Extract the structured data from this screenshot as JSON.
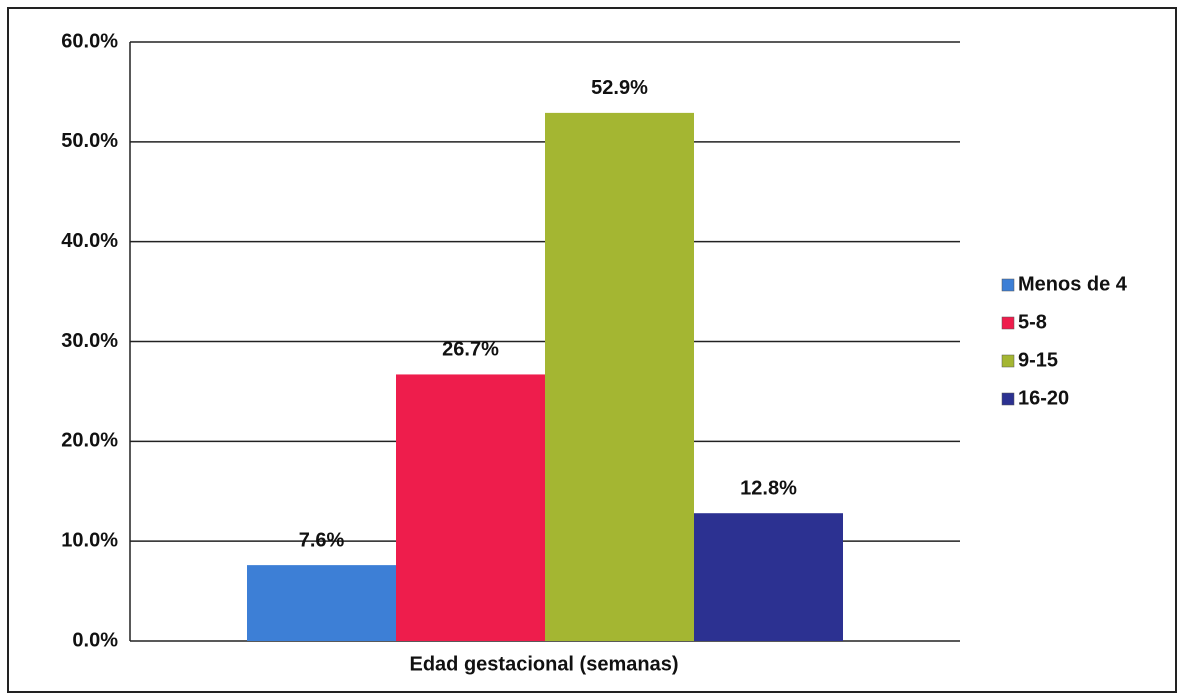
{
  "chart_data": {
    "type": "bar",
    "x_label": "Edad gestacional (semanas)",
    "series": [
      {
        "name": "Menos de 4",
        "color": "#3d7fd6",
        "values": [
          7.6
        ],
        "value_labels": [
          "7.6%"
        ]
      },
      {
        "name": "5-8",
        "color": "#ee1d4c",
        "values": [
          26.7
        ],
        "value_labels": [
          "26.7%"
        ]
      },
      {
        "name": "9-15",
        "color": "#a4b632",
        "values": [
          52.9
        ],
        "value_labels": [
          "52.9%"
        ]
      },
      {
        "name": "16-20",
        "color": "#2c3191",
        "values": [
          12.8
        ],
        "value_labels": [
          "12.8%"
        ]
      }
    ],
    "ylim": [
      0,
      60
    ],
    "yticks": [
      {
        "value": 0,
        "label": "0.0%"
      },
      {
        "value": 10,
        "label": "10.0%"
      },
      {
        "value": 20,
        "label": "20.0%"
      },
      {
        "value": 30,
        "label": "30.0%"
      },
      {
        "value": 40,
        "label": "40.0%"
      },
      {
        "value": 50,
        "label": "50.0%"
      },
      {
        "value": 60,
        "label": "60.0%"
      }
    ],
    "grid": true,
    "legend": "right"
  }
}
